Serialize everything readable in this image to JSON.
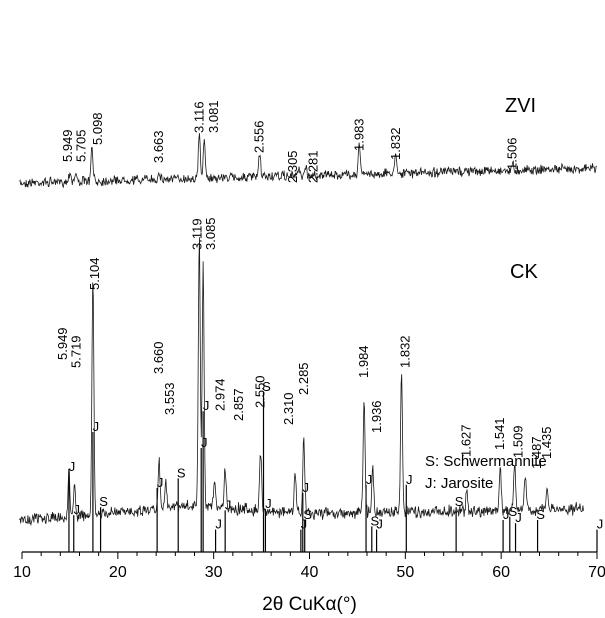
{
  "chart_data": {
    "type": "line",
    "title": "",
    "xlabel": "2θ CuKα(°)",
    "ylabel": "",
    "xlim": [
      10,
      70
    ],
    "xticks": [
      10,
      20,
      30,
      40,
      50,
      60,
      70
    ],
    "grid": false,
    "series": [
      {
        "name": "ZVI",
        "peaks": [
          {
            "x": 15.0,
            "label": "5.949"
          },
          {
            "x": 15.6,
            "label": "5.705"
          },
          {
            "x": 17.3,
            "label": "5.098"
          },
          {
            "x": 24.3,
            "label": "3.663"
          },
          {
            "x": 28.5,
            "label": "3.116"
          },
          {
            "x": 29.0,
            "label": "3.081"
          },
          {
            "x": 34.8,
            "label": "2.556"
          },
          {
            "x": 38.9,
            "label": "2.305"
          },
          {
            "x": 39.6,
            "label": "2.281"
          },
          {
            "x": 45.2,
            "label": "1.983"
          },
          {
            "x": 49.0,
            "label": "1.832"
          },
          {
            "x": 61.2,
            "label": "1.506"
          }
        ]
      },
      {
        "name": "CK",
        "peaks": [
          {
            "x": 14.9,
            "label": "5.949"
          },
          {
            "x": 15.5,
            "label": "5.719"
          },
          {
            "x": 17.4,
            "label": "5.104"
          },
          {
            "x": 24.3,
            "label": "3.660"
          },
          {
            "x": 25.0,
            "label": "3.553"
          },
          {
            "x": 28.5,
            "label": "3.119"
          },
          {
            "x": 28.9,
            "label": "3.085"
          },
          {
            "x": 30.1,
            "label": "2.974"
          },
          {
            "x": 31.2,
            "label": "2.857"
          },
          {
            "x": 34.9,
            "label": "2.550"
          },
          {
            "x": 38.5,
            "label": "2.310"
          },
          {
            "x": 39.4,
            "label": "2.285"
          },
          {
            "x": 45.7,
            "label": "1.984"
          },
          {
            "x": 46.6,
            "label": "1.936"
          },
          {
            "x": 49.6,
            "label": "1.832"
          },
          {
            "x": 56.4,
            "label": "1.627"
          },
          {
            "x": 59.9,
            "label": "1.541"
          },
          {
            "x": 61.4,
            "label": "1.509"
          },
          {
            "x": 62.5,
            "label": "1.487"
          },
          {
            "x": 64.8,
            "label": "1.435"
          }
        ]
      }
    ],
    "legend": {
      "entries": [
        "S: Schwermannite",
        "J: Jarosite"
      ],
      "placement": "right"
    },
    "reference_lines": [
      {
        "x": 14.9,
        "phase": "J",
        "intensity": 0.5
      },
      {
        "x": 15.4,
        "phase": "J",
        "intensity": 0.23
      },
      {
        "x": 17.4,
        "phase": "J",
        "intensity": 0.75
      },
      {
        "x": 18.2,
        "phase": "S",
        "intensity": 0.28
      },
      {
        "x": 24.1,
        "phase": "J",
        "intensity": 0.4
      },
      {
        "x": 26.3,
        "phase": "S",
        "intensity": 0.46
      },
      {
        "x": 28.7,
        "phase": "J",
        "intensity": 0.65
      },
      {
        "x": 28.9,
        "phase": "J",
        "intensity": 0.88
      },
      {
        "x": 30.2,
        "phase": "J",
        "intensity": 0.14
      },
      {
        "x": 31.2,
        "phase": "J",
        "intensity": 0.26
      },
      {
        "x": 35.2,
        "phase": "S",
        "intensity": 1.0
      },
      {
        "x": 35.4,
        "phase": "J",
        "intensity": 0.27
      },
      {
        "x": 39.1,
        "phase": "J",
        "intensity": 0.14
      },
      {
        "x": 39.3,
        "phase": "J",
        "intensity": 0.37
      },
      {
        "x": 39.5,
        "phase": "S",
        "intensity": 0.2
      },
      {
        "x": 45.9,
        "phase": "J",
        "intensity": 0.42
      },
      {
        "x": 46.5,
        "phase": "S",
        "intensity": 0.16
      },
      {
        "x": 47.0,
        "phase": "J",
        "intensity": 0.14
      },
      {
        "x": 50.1,
        "phase": "J",
        "intensity": 0.42
      },
      {
        "x": 55.3,
        "phase": "S",
        "intensity": 0.28
      },
      {
        "x": 60.2,
        "phase": "J",
        "intensity": 0.2
      },
      {
        "x": 60.9,
        "phase": "S",
        "intensity": 0.22
      },
      {
        "x": 61.5,
        "phase": "J",
        "intensity": 0.18
      },
      {
        "x": 63.8,
        "phase": "S",
        "intensity": 0.2
      },
      {
        "x": 70.0,
        "phase": "J",
        "intensity": 0.14
      }
    ]
  }
}
